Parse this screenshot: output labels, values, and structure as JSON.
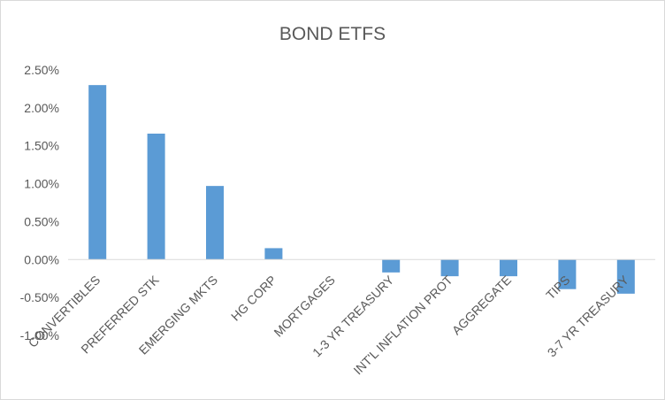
{
  "chart_data": {
    "type": "bar",
    "title": "BOND ETFS",
    "xlabel": "",
    "ylabel": "",
    "categories": [
      "CONVERTIBLES",
      "PREFERRED STK",
      "EMERGING MKTS",
      "HG CORP",
      "MORTGAGES",
      "1-3 YR TREASURY",
      "INT'L INFLATION PROT",
      "AGGREGATE",
      "TIPS",
      "3-7 YR TREASURY"
    ],
    "values": [
      0.023,
      0.0166,
      0.0097,
      0.0015,
      0.0,
      -0.0017,
      -0.0022,
      -0.0022,
      -0.0039,
      -0.0045
    ],
    "ylim": [
      -0.01,
      0.025
    ],
    "yticks": [
      -0.01,
      -0.005,
      0,
      0.005,
      0.01,
      0.015,
      0.02,
      0.025
    ],
    "ytick_labels": [
      "-1.00%",
      "-0.50%",
      "0.00%",
      "0.50%",
      "1.00%",
      "1.50%",
      "2.00%",
      "2.50%"
    ],
    "grid": false,
    "legend": "none",
    "bar_color": "#5b9bd5",
    "axis_color": "#d9d9d9",
    "text_color": "#595959"
  }
}
